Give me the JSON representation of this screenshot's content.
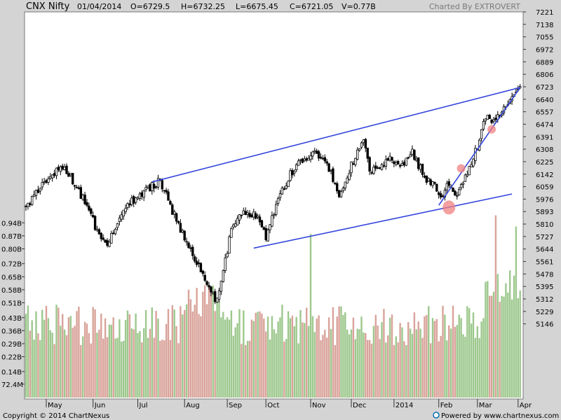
{
  "header": {
    "symbol": "CNX Nifty",
    "date": "01/04/2014",
    "open": "O=6729.5",
    "high": "H=6732.25",
    "low": "L=6675.45",
    "close": "C=6721.05",
    "volume": "V=0.77B",
    "credit": "Charted By EXTROVERT"
  },
  "footer": {
    "copyright": "Copyright © 2014 ChartNexus",
    "powered": "Powered by www.chartnexus.com"
  },
  "colors": {
    "background": "#d4d4d4",
    "plot": "#ffffff",
    "candle": "#000000",
    "volume_up": "#9dc88d",
    "volume_down": "#d9a39a",
    "trendline": "#3344dd",
    "highlight": "#f08080"
  },
  "chart_data": {
    "type": "candlestick",
    "price_axis": {
      "range": [
        5070,
        7221
      ],
      "ticks": [
        "7221",
        "7138",
        "7055",
        "6972",
        "6889",
        "6806",
        "6723",
        "6640",
        "6557",
        "6474",
        "6391",
        "6308",
        "6225",
        "6142",
        "6059",
        "5976",
        "5893",
        "5810",
        "5727",
        "5644",
        "5561",
        "5478",
        "5395",
        "5312",
        "5229",
        "5146"
      ]
    },
    "volume_axis": {
      "range_billion": [
        0,
        1.02
      ],
      "ticks": [
        "0.94B",
        "0.87B",
        "0.80B",
        "0.72B",
        "0.65B",
        "0.58B",
        "0.51B",
        "0.43B",
        "0.36B",
        "0.29B",
        "0.22B",
        "0.14B",
        "72.4M"
      ]
    },
    "x_axis": {
      "labels": [
        {
          "label": "May",
          "day": 10
        },
        {
          "label": "Jun",
          "day": 33
        },
        {
          "label": "Jul",
          "day": 55
        },
        {
          "label": "Aug",
          "day": 78
        },
        {
          "label": "Sep",
          "day": 99
        },
        {
          "label": "Oct",
          "day": 118
        },
        {
          "label": "Nov",
          "day": 140
        },
        {
          "label": "Dec",
          "day": 160
        },
        {
          "label": "2014",
          "day": 181
        },
        {
          "label": "Feb",
          "day": 203
        },
        {
          "label": "Mar",
          "day": 222
        },
        {
          "label": "Apr",
          "day": 242
        }
      ]
    },
    "price_path": [
      [
        0,
        5920
      ],
      [
        10,
        6100
      ],
      [
        18,
        6200
      ],
      [
        23,
        6100
      ],
      [
        28,
        5980
      ],
      [
        34,
        5800
      ],
      [
        40,
        5670
      ],
      [
        48,
        5900
      ],
      [
        55,
        6000
      ],
      [
        62,
        6060
      ],
      [
        66,
        6100
      ],
      [
        72,
        5900
      ],
      [
        76,
        5780
      ],
      [
        82,
        5600
      ],
      [
        86,
        5500
      ],
      [
        90,
        5380
      ],
      [
        94,
        5300
      ],
      [
        97,
        5480
      ],
      [
        101,
        5800
      ],
      [
        108,
        5900
      ],
      [
        114,
        5850
      ],
      [
        118,
        5720
      ],
      [
        124,
        5980
      ],
      [
        130,
        6140
      ],
      [
        137,
        6250
      ],
      [
        142,
        6300
      ],
      [
        150,
        6150
      ],
      [
        154,
        5970
      ],
      [
        160,
        6200
      ],
      [
        166,
        6380
      ],
      [
        169,
        6150
      ],
      [
        174,
        6200
      ],
      [
        180,
        6260
      ],
      [
        184,
        6180
      ],
      [
        190,
        6290
      ],
      [
        196,
        6120
      ],
      [
        200,
        6080
      ],
      [
        204,
        5980
      ],
      [
        208,
        6080
      ],
      [
        212,
        5990
      ],
      [
        218,
        6200
      ],
      [
        222,
        6320
      ],
      [
        226,
        6520
      ],
      [
        230,
        6500
      ],
      [
        234,
        6550
      ],
      [
        238,
        6610
      ],
      [
        241,
        6700
      ],
      [
        243,
        6721
      ]
    ],
    "trendlines": [
      {
        "name": "upper-channel",
        "from": [
          62,
          6090
        ],
        "to": [
          243,
          6718
        ]
      },
      {
        "name": "lower-channel",
        "from": [
          112,
          5650
        ],
        "to": [
          239,
          6010
        ]
      },
      {
        "name": "rising-support",
        "from": [
          203,
          5935
        ],
        "to": [
          243,
          6718
        ]
      }
    ],
    "highlights": [
      {
        "day": 208,
        "price": 5920
      },
      {
        "day": 214,
        "price": 6180
      },
      {
        "day": 229,
        "price": 6440
      }
    ]
  }
}
